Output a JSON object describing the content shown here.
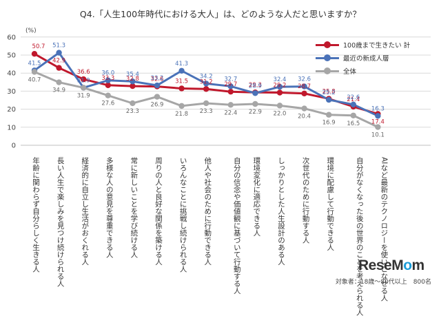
{
  "title": "Q4.「人生100年時代における大人」は、どのような人だと思いますか？",
  "unit": "(%)",
  "footer": "対象者：18歳～80代以上　800名",
  "logo": {
    "main": "ReseM",
    "accent": "o",
    "tail": "m"
  },
  "chart_data": {
    "type": "line",
    "title": "Q4.「人生100年時代における大人」は、どのような人だと思いますか？",
    "ylabel": "(%)",
    "ylim": [
      0,
      60
    ],
    "yticks": [
      0,
      10,
      20,
      30,
      40,
      50,
      60
    ],
    "grid": true,
    "legend_position": "top-right",
    "categories": [
      [
        "年齢に関わらず自分らしく生きる人"
      ],
      [
        "長い人生で楽しみを見つけ続けられる人"
      ],
      [
        "経済的に自立し生活がおくれる人"
      ],
      [
        "多様な人の意見を尊重できる人"
      ],
      [
        "常に新しいことを学び続ける人"
      ],
      [
        "周りの人と良好な関係を築ける人"
      ],
      [
        "いろんなことに挑戦し続けられる人"
      ],
      [
        "他人や社会のために行動できる人"
      ],
      [
        "自分の信念や価値観に基づいて行動する",
        "人"
      ],
      [
        "環境変化に適応できる人"
      ],
      [
        "しっかりとした人生設計のある人"
      ],
      [
        "次世代のために行動する人"
      ],
      [
        "環境に配慮して行動できる人"
      ],
      [
        "自分がなくなった後の世界のことを",
        "考えられる人"
      ],
      [
        "AIなど最新のテクノロジーを",
        "使いこなせる人"
      ]
    ],
    "series": [
      {
        "name": "100歳まで生きたい 計",
        "color": "#c0182c",
        "values": [
          50.7,
          42.9,
          36.6,
          33.3,
          32.8,
          32.6,
          31.5,
          31.2,
          29.7,
          29.3,
          29.2,
          28.7,
          25.8,
          21.4,
          17.4
        ]
      },
      {
        "name": "最近の新成人層",
        "color": "#4a72b8",
        "values": [
          41.5,
          51.3,
          31.9,
          36.0,
          35.4,
          33.2,
          41.3,
          34.2,
          32.7,
          28.9,
          32.4,
          32.6,
          25.2,
          22.6,
          16.3
        ]
      },
      {
        "name": "全体",
        "color": "#a6a6a6",
        "values": [
          40.7,
          34.9,
          31.9,
          27.6,
          23.3,
          26.9,
          21.8,
          23.3,
          22.4,
          22.9,
          22.0,
          20.4,
          16.9,
          16.5,
          10.1
        ]
      }
    ]
  }
}
